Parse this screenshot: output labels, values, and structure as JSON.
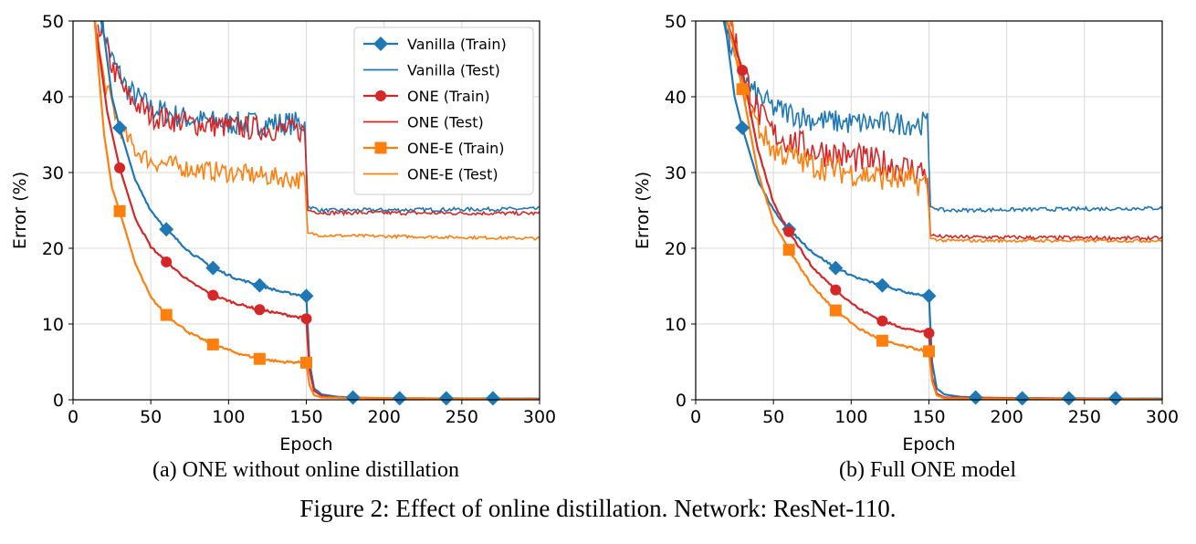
{
  "figure_caption": "Figure 2: Effect of online distillation. Network: ResNet-110.",
  "colors": {
    "vanilla": "#1f77b4",
    "one": "#d62728",
    "one_e": "#ff7f0e",
    "grid": "#d9d9d9"
  },
  "chart_data": [
    {
      "type": "line",
      "caption": "(a) ONE without online distillation",
      "xlabel": "Epoch",
      "ylabel": "Error (%)",
      "xlim": [
        0,
        300
      ],
      "ylim": [
        0,
        50
      ],
      "xticks": [
        0,
        50,
        100,
        150,
        200,
        250,
        300
      ],
      "yticks": [
        0,
        10,
        20,
        30,
        40,
        50
      ],
      "grid": true,
      "legend_position": "top-right",
      "legend": [
        {
          "label": "Vanilla (Train)",
          "series": 0
        },
        {
          "label": "Vanilla (Test)",
          "series": 1
        },
        {
          "label": "ONE (Train)",
          "series": 2
        },
        {
          "label": "ONE (Test)",
          "series": 3
        },
        {
          "label": "ONE-E (Train)",
          "series": 4
        },
        {
          "label": "ONE-E (Test)",
          "series": 5
        }
      ],
      "series": [
        {
          "name": "Vanilla (Train)",
          "color": "#1f77b4",
          "marker": "diamond",
          "kind": "train",
          "points": [
            [
              18,
              50
            ],
            [
              20,
              48
            ],
            [
              25,
              40
            ],
            [
              30,
              35.9
            ],
            [
              40,
              29
            ],
            [
              50,
              25
            ],
            [
              60,
              22.5
            ],
            [
              75,
              19.5
            ],
            [
              90,
              17.4
            ],
            [
              105,
              16
            ],
            [
              120,
              15.1
            ],
            [
              135,
              14.2
            ],
            [
              150,
              13.7
            ],
            [
              152,
              5
            ],
            [
              155,
              1.5
            ],
            [
              160,
              0.7
            ],
            [
              170,
              0.4
            ],
            [
              180,
              0.3
            ],
            [
              200,
              0.2
            ],
            [
              300,
              0.15
            ]
          ],
          "markers": [
            [
              30,
              35.9
            ],
            [
              60,
              22.5
            ],
            [
              90,
              17.4
            ],
            [
              120,
              15.1
            ],
            [
              150,
              13.7
            ],
            [
              180,
              0.3
            ],
            [
              210,
              0.2
            ],
            [
              240,
              0.2
            ],
            [
              270,
              0.2
            ]
          ]
        },
        {
          "name": "Vanilla (Test)",
          "color": "#1f77b4",
          "marker": "none",
          "kind": "test",
          "noise": 1.6,
          "noise_post": 0.25,
          "points": [
            [
              18,
              50
            ],
            [
              25,
              45
            ],
            [
              35,
              41
            ],
            [
              50,
              38.5
            ],
            [
              75,
              37
            ],
            [
              100,
              36.5
            ],
            [
              149,
              36.5
            ],
            [
              151,
              25.5
            ],
            [
              160,
              25
            ],
            [
              300,
              25.2
            ]
          ]
        },
        {
          "name": "ONE (Train)",
          "color": "#d62728",
          "marker": "circle",
          "kind": "train",
          "points": [
            [
              14,
              50
            ],
            [
              18,
              44
            ],
            [
              22,
              38
            ],
            [
              30,
              30.6
            ],
            [
              40,
              24
            ],
            [
              50,
              20.2
            ],
            [
              60,
              18.2
            ],
            [
              75,
              15.6
            ],
            [
              90,
              13.8
            ],
            [
              105,
              12.7
            ],
            [
              120,
              11.9
            ],
            [
              135,
              11.3
            ],
            [
              150,
              10.7
            ],
            [
              152,
              4
            ],
            [
              155,
              1.2
            ],
            [
              160,
              0.5
            ],
            [
              170,
              0.3
            ],
            [
              200,
              0.15
            ],
            [
              300,
              0.1
            ]
          ],
          "markers": [
            [
              30,
              30.6
            ],
            [
              60,
              18.2
            ],
            [
              90,
              13.8
            ],
            [
              120,
              11.9
            ],
            [
              150,
              10.7
            ]
          ]
        },
        {
          "name": "ONE (Test)",
          "color": "#d62728",
          "marker": "none",
          "kind": "test",
          "noise": 1.6,
          "noise_post": 0.25,
          "points": [
            [
              16,
              50
            ],
            [
              25,
              44
            ],
            [
              35,
              40
            ],
            [
              50,
              37.5
            ],
            [
              75,
              36.5
            ],
            [
              100,
              36
            ],
            [
              149,
              35.5
            ],
            [
              151,
              25
            ],
            [
              160,
              24.7
            ],
            [
              300,
              24.6
            ]
          ]
        },
        {
          "name": "ONE-E (Train)",
          "color": "#ff7f0e",
          "marker": "square",
          "kind": "train",
          "points": [
            [
              14,
              50
            ],
            [
              17,
              42
            ],
            [
              20,
              35
            ],
            [
              25,
              28
            ],
            [
              30,
              24.9
            ],
            [
              40,
              18
            ],
            [
              50,
              13.5
            ],
            [
              60,
              11.2
            ],
            [
              75,
              8.8
            ],
            [
              90,
              7.3
            ],
            [
              105,
              6.2
            ],
            [
              120,
              5.4
            ],
            [
              135,
              5
            ],
            [
              150,
              4.9
            ],
            [
              152,
              2
            ],
            [
              155,
              0.6
            ],
            [
              160,
              0.3
            ],
            [
              300,
              0.05
            ]
          ],
          "markers": [
            [
              30,
              24.9
            ],
            [
              60,
              11.2
            ],
            [
              90,
              7.3
            ],
            [
              120,
              5.4
            ],
            [
              150,
              4.9
            ]
          ]
        },
        {
          "name": "ONE-E (Test)",
          "color": "#ff7f0e",
          "marker": "none",
          "kind": "test",
          "noise": 1.3,
          "noise_post": 0.2,
          "points": [
            [
              14,
              50
            ],
            [
              20,
              42
            ],
            [
              30,
              36
            ],
            [
              40,
              33
            ],
            [
              50,
              31.5
            ],
            [
              75,
              30.5
            ],
            [
              100,
              30
            ],
            [
              149,
              29
            ],
            [
              151,
              22
            ],
            [
              160,
              21.7
            ],
            [
              300,
              21.3
            ]
          ]
        }
      ]
    },
    {
      "type": "line",
      "caption": "(b) Full ONE model",
      "xlabel": "Epoch",
      "ylabel": "Error (%)",
      "xlim": [
        0,
        300
      ],
      "ylim": [
        0,
        50
      ],
      "xticks": [
        0,
        50,
        100,
        150,
        200,
        250,
        300
      ],
      "yticks": [
        0,
        10,
        20,
        30,
        40,
        50
      ],
      "grid": true,
      "legend": [],
      "series": [
        {
          "name": "Vanilla (Train)",
          "color": "#1f77b4",
          "marker": "diamond",
          "kind": "train",
          "points": [
            [
              18,
              50
            ],
            [
              20,
              48
            ],
            [
              25,
              40
            ],
            [
              30,
              35.9
            ],
            [
              40,
              29
            ],
            [
              50,
              25
            ],
            [
              60,
              22.5
            ],
            [
              75,
              19.5
            ],
            [
              90,
              17.4
            ],
            [
              105,
              16
            ],
            [
              120,
              15.1
            ],
            [
              135,
              14.2
            ],
            [
              150,
              13.7
            ],
            [
              152,
              5
            ],
            [
              155,
              1.5
            ],
            [
              160,
              0.7
            ],
            [
              170,
              0.4
            ],
            [
              180,
              0.3
            ],
            [
              200,
              0.2
            ],
            [
              300,
              0.15
            ]
          ],
          "markers": [
            [
              30,
              35.9
            ],
            [
              60,
              22.5
            ],
            [
              90,
              17.4
            ],
            [
              120,
              15.1
            ],
            [
              150,
              13.7
            ],
            [
              180,
              0.3
            ],
            [
              210,
              0.2
            ],
            [
              240,
              0.2
            ],
            [
              270,
              0.2
            ]
          ]
        },
        {
          "name": "Vanilla (Test)",
          "color": "#1f77b4",
          "marker": "none",
          "kind": "test",
          "noise": 1.6,
          "noise_post": 0.25,
          "points": [
            [
              18,
              50
            ],
            [
              25,
              45
            ],
            [
              35,
              41
            ],
            [
              50,
              38.5
            ],
            [
              75,
              37
            ],
            [
              100,
              36.5
            ],
            [
              149,
              36.5
            ],
            [
              151,
              25.5
            ],
            [
              160,
              25
            ],
            [
              300,
              25.3
            ]
          ]
        },
        {
          "name": "ONE (Train)",
          "color": "#d62728",
          "marker": "circle",
          "kind": "train",
          "points": [
            [
              20,
              50
            ],
            [
              25,
              47
            ],
            [
              30,
              43.5
            ],
            [
              40,
              33
            ],
            [
              50,
              26
            ],
            [
              60,
              22.2
            ],
            [
              75,
              17.5
            ],
            [
              90,
              14.5
            ],
            [
              105,
              12
            ],
            [
              120,
              10.4
            ],
            [
              135,
              9.4
            ],
            [
              150,
              8.8
            ],
            [
              152,
              3
            ],
            [
              155,
              0.8
            ],
            [
              160,
              0.3
            ],
            [
              300,
              0.05
            ]
          ],
          "markers": [
            [
              30,
              43.5
            ],
            [
              60,
              22.2
            ],
            [
              90,
              14.5
            ],
            [
              120,
              10.4
            ],
            [
              150,
              8.8
            ]
          ]
        },
        {
          "name": "ONE (Test)",
          "color": "#d62728",
          "marker": "none",
          "kind": "test",
          "noise": 2.0,
          "noise_post": 0.25,
          "points": [
            [
              22,
              50
            ],
            [
              30,
              44
            ],
            [
              40,
              38
            ],
            [
              50,
              35
            ],
            [
              75,
              33
            ],
            [
              100,
              32
            ],
            [
              149,
              30
            ],
            [
              151,
              21.7
            ],
            [
              160,
              21.5
            ],
            [
              300,
              21.3
            ]
          ]
        },
        {
          "name": "ONE-E (Train)",
          "color": "#ff7f0e",
          "marker": "square",
          "kind": "train",
          "points": [
            [
              20,
              50
            ],
            [
              25,
              46
            ],
            [
              30,
              41
            ],
            [
              40,
              30
            ],
            [
              50,
              23.5
            ],
            [
              60,
              19.8
            ],
            [
              75,
              15
            ],
            [
              90,
              11.8
            ],
            [
              105,
              9.4
            ],
            [
              120,
              7.8
            ],
            [
              135,
              7
            ],
            [
              150,
              6.4
            ],
            [
              152,
              2.5
            ],
            [
              155,
              0.6
            ],
            [
              160,
              0.2
            ],
            [
              300,
              0.05
            ]
          ],
          "markers": [
            [
              30,
              41
            ],
            [
              60,
              19.8
            ],
            [
              90,
              11.8
            ],
            [
              120,
              7.8
            ],
            [
              150,
              6.4
            ]
          ]
        },
        {
          "name": "ONE-E (Test)",
          "color": "#ff7f0e",
          "marker": "none",
          "kind": "test",
          "noise": 1.8,
          "noise_post": 0.2,
          "points": [
            [
              22,
              50
            ],
            [
              30,
              42
            ],
            [
              40,
              36
            ],
            [
              50,
              33
            ],
            [
              75,
              31
            ],
            [
              100,
              30
            ],
            [
              149,
              28.5
            ],
            [
              151,
              21.3
            ],
            [
              160,
              21
            ],
            [
              300,
              21
            ]
          ]
        }
      ]
    }
  ]
}
